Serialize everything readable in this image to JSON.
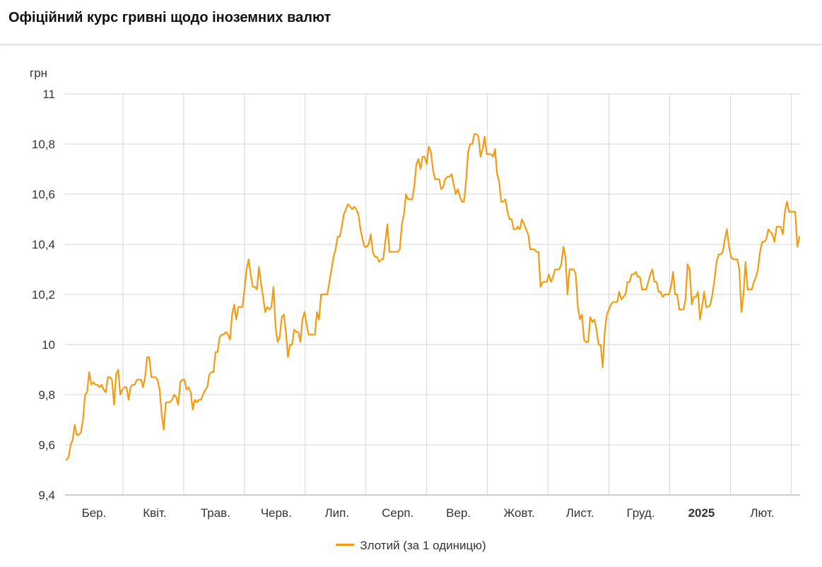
{
  "title": "Офіційний курс гривні щодо іноземних валют",
  "chart_data": {
    "type": "line",
    "ylabel": "грн",
    "ylim": [
      9.4,
      11
    ],
    "yticks": [
      "11",
      "10,8",
      "10,6",
      "10,4",
      "10,2",
      "10",
      "9,8",
      "9,6",
      "9,4"
    ],
    "xlabels": [
      "Бер.",
      "Квіт.",
      "Трав.",
      "Черв.",
      "Лип.",
      "Серп.",
      "Вер.",
      "Жовт.",
      "Лист.",
      "Груд.",
      "2025",
      "Лют."
    ],
    "bold_xlabel": "2025",
    "grid": true,
    "legend_position": "bottom",
    "series": [
      {
        "name": "Злотий (за 1 одиницю)",
        "color": "#f39c12",
        "values": [
          9.54,
          9.55,
          9.6,
          9.62,
          9.68,
          9.64,
          9.64,
          9.65,
          9.7,
          9.8,
          9.81,
          9.89,
          9.84,
          9.85,
          9.84,
          9.84,
          9.83,
          9.84,
          9.82,
          9.81,
          9.87,
          9.87,
          9.86,
          9.76,
          9.88,
          9.9,
          9.8,
          9.82,
          9.83,
          9.83,
          9.78,
          9.83,
          9.84,
          9.84,
          9.86,
          9.86,
          9.86,
          9.83,
          9.87,
          9.95,
          9.95,
          9.87,
          9.87,
          9.87,
          9.86,
          9.82,
          9.72,
          9.66,
          9.77,
          9.77,
          9.77,
          9.78,
          9.8,
          9.79,
          9.76,
          9.85,
          9.86,
          9.86,
          9.82,
          9.83,
          9.81,
          9.74,
          9.78,
          9.77,
          9.78,
          9.78,
          9.8,
          9.82,
          9.83,
          9.88,
          9.89,
          9.89,
          9.97,
          9.97,
          10.03,
          10.04,
          10.04,
          10.05,
          10.04,
          10.02,
          10.12,
          10.16,
          10.1,
          10.15,
          10.15,
          10.15,
          10.22,
          10.3,
          10.34,
          10.28,
          10.23,
          10.23,
          10.22,
          10.31,
          10.24,
          10.19,
          10.13,
          10.15,
          10.14,
          10.15,
          10.23,
          10.07,
          10.01,
          10.03,
          10.11,
          10.12,
          10.05,
          9.95,
          10.0,
          10.0,
          10.06,
          10.05,
          10.05,
          10.01,
          10.1,
          10.13,
          10.08,
          10.04,
          10.04,
          10.04,
          10.04,
          10.13,
          10.1,
          10.2,
          10.2,
          10.2,
          10.2,
          10.25,
          10.3,
          10.35,
          10.38,
          10.43,
          10.43,
          10.47,
          10.52,
          10.54,
          10.56,
          10.55,
          10.54,
          10.55,
          10.54,
          10.52,
          10.46,
          10.42,
          10.39,
          10.39,
          10.4,
          10.44,
          10.37,
          10.35,
          10.35,
          10.33,
          10.34,
          10.34,
          10.41,
          10.48,
          10.37,
          10.37,
          10.37,
          10.37,
          10.37,
          10.38,
          10.48,
          10.52,
          10.6,
          10.58,
          10.58,
          10.58,
          10.63,
          10.72,
          10.74,
          10.7,
          10.75,
          10.75,
          10.72,
          10.79,
          10.77,
          10.7,
          10.66,
          10.66,
          10.66,
          10.62,
          10.63,
          10.66,
          10.67,
          10.67,
          10.68,
          10.64,
          10.6,
          10.62,
          10.59,
          10.57,
          10.57,
          10.65,
          10.77,
          10.8,
          10.8,
          10.84,
          10.84,
          10.83,
          10.75,
          10.78,
          10.83,
          10.76,
          10.76,
          10.76,
          10.75,
          10.78,
          10.68,
          10.65,
          10.57,
          10.57,
          10.58,
          10.53,
          10.5,
          10.5,
          10.46,
          10.46,
          10.47,
          10.46,
          10.5,
          10.48,
          10.46,
          10.44,
          10.38,
          10.38,
          10.38,
          10.37,
          10.37,
          10.23,
          10.25,
          10.25,
          10.25,
          10.28,
          10.25,
          10.27,
          10.3,
          10.3,
          10.3,
          10.32,
          10.39,
          10.35,
          10.2,
          10.3,
          10.3,
          10.3,
          10.28,
          10.15,
          10.1,
          10.12,
          10.02,
          10.01,
          10.01,
          10.11,
          10.09,
          10.1,
          10.06,
          10.0,
          10.0,
          9.91,
          10.05,
          10.12,
          10.14,
          10.16,
          10.17,
          10.17,
          10.17,
          10.21,
          10.18,
          10.19,
          10.2,
          10.25,
          10.25,
          10.28,
          10.28,
          10.29,
          10.27,
          10.27,
          10.22,
          10.22,
          10.22,
          10.25,
          10.28,
          10.3,
          10.25,
          10.25,
          10.21,
          10.21,
          10.19,
          10.2,
          10.2,
          10.2,
          10.23,
          10.29,
          10.2,
          10.2,
          10.14,
          10.14,
          10.14,
          10.18,
          10.32,
          10.3,
          10.16,
          10.19,
          10.19,
          10.21,
          10.1,
          10.15,
          10.21,
          10.15,
          10.15,
          10.16,
          10.2,
          10.26,
          10.33,
          10.36,
          10.36,
          10.37,
          10.42,
          10.46,
          10.39,
          10.35,
          10.34,
          10.34,
          10.34,
          10.3,
          10.13,
          10.2,
          10.33,
          10.22,
          10.22,
          10.22,
          10.25,
          10.27,
          10.3,
          10.37,
          10.41,
          10.41,
          10.42,
          10.46,
          10.45,
          10.44,
          10.41,
          10.47,
          10.47,
          10.47,
          10.44,
          10.53,
          10.57,
          10.53,
          10.53,
          10.53,
          10.53,
          10.39,
          10.43
        ]
      }
    ]
  }
}
